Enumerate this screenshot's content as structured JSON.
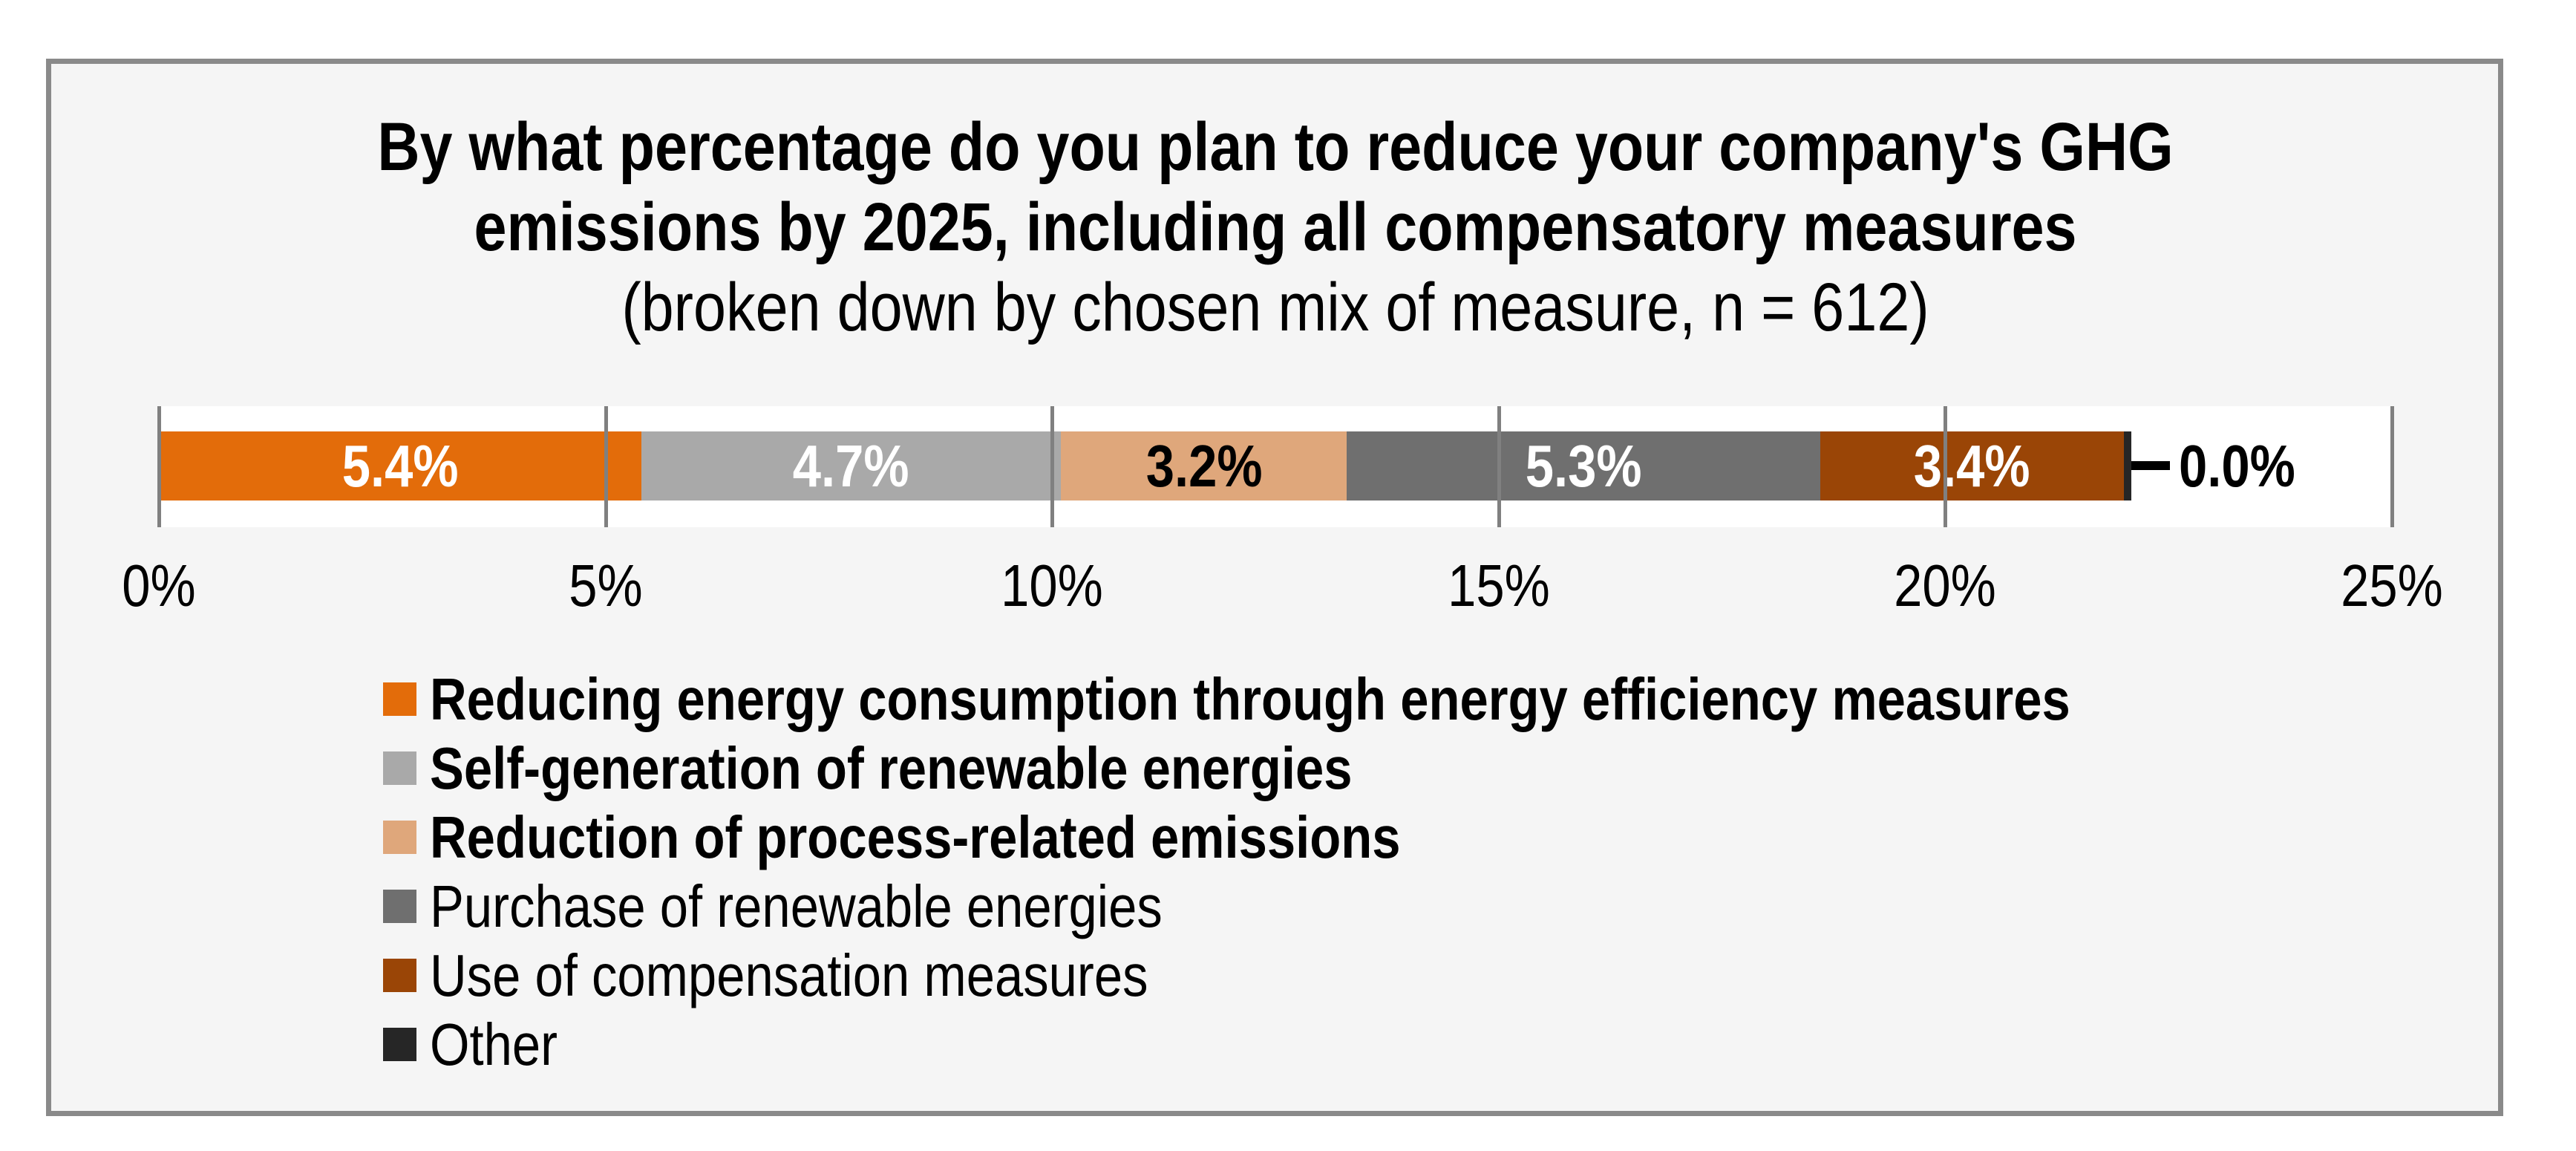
{
  "figure": {
    "background": "#FFFFFF",
    "panel_background": "#F5F5F5",
    "border_color": "#8A8A8A"
  },
  "title": {
    "line1": "By what percentage do you plan to reduce your company's GHG",
    "line2": "emissions by 2025, including all compensatory measures",
    "line3": "(broken down by chosen mix of measure,  n = 612)"
  },
  "chart_data": {
    "type": "bar",
    "subtype": "horizontal-stacked",
    "title": "By what percentage do you plan to reduce your company's GHG emissions by 2025, including all compensatory measures",
    "subtitle": "(broken down by chosen mix of measure,  n = 612)",
    "xlim": [
      0,
      25
    ],
    "x_ticks": [
      "0%",
      "5%",
      "10%",
      "15%",
      "20%",
      "25%"
    ],
    "grid": true,
    "gridline_color": "#808080",
    "legend_position": "bottom-left",
    "total_label": null,
    "series": [
      {
        "name": "Reducing energy consumption through energy efficiency measures",
        "value": 5.4,
        "label": "5.4%",
        "color": "#E36C0A",
        "label_color": "#FFFFFF",
        "legend_bold": true
      },
      {
        "name": "Self-generation of renewable energies",
        "value": 4.7,
        "label": "4.7%",
        "color": "#A9A9A9",
        "label_color": "#FFFFFF",
        "legend_bold": true
      },
      {
        "name": "Reduction of process-related emissions",
        "value": 3.2,
        "label": "3.2%",
        "color": "#DFA77B",
        "label_color": "#000000",
        "legend_bold": true
      },
      {
        "name": "Purchase of renewable energies",
        "value": 5.3,
        "label": "5.3%",
        "color": "#6F6F6F",
        "label_color": "#FFFFFF",
        "legend_bold": false
      },
      {
        "name": "Use of compensation measures",
        "value": 3.4,
        "label": "3.4%",
        "color": "#9A4506",
        "label_color": "#FFFFFF",
        "legend_bold": false
      },
      {
        "name": "Other",
        "value": 0.0,
        "label": "0.0%",
        "color": "#262626",
        "label_color": "#000000",
        "legend_bold": false
      }
    ]
  }
}
